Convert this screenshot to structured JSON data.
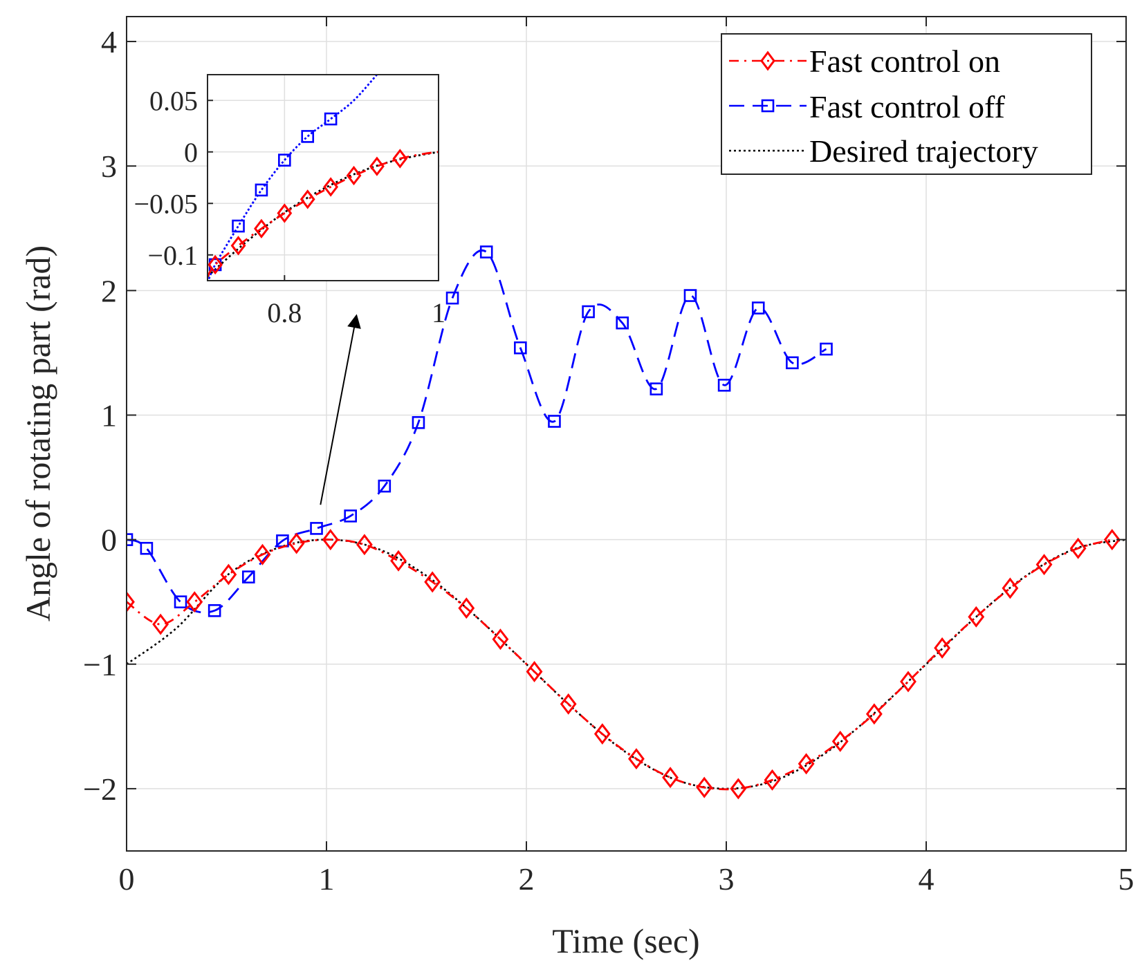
{
  "chart_data": {
    "type": "line",
    "title": "",
    "xlabel": "Time (sec)",
    "ylabel": "Angle of rotating part (rad)",
    "xlim": [
      0,
      5
    ],
    "ylim": [
      -2.5,
      4.2
    ],
    "xticks": [
      0,
      1,
      2,
      3,
      4,
      5
    ],
    "yticks": [
      -2,
      -1,
      0,
      1,
      2,
      3,
      4
    ],
    "xtick_labels": [
      "0",
      "1",
      "2",
      "3",
      "4",
      "5"
    ],
    "ytick_labels": [
      "−2",
      "−1",
      "0",
      "1",
      "2",
      "3",
      "4"
    ],
    "grid": true,
    "legend_position": "top-right",
    "series": [
      {
        "name": "Fast control on",
        "color": "#ff0000",
        "line_style": "dash-dot",
        "marker": "diamond",
        "x": [
          0,
          0.17,
          0.34,
          0.51,
          0.68,
          0.85,
          1.02,
          1.19,
          1.36,
          1.53,
          1.7,
          1.87,
          2.04,
          2.21,
          2.38,
          2.55,
          2.72,
          2.89,
          3.06,
          3.23,
          3.4,
          3.57,
          3.74,
          3.91,
          4.08,
          4.25,
          4.42,
          4.59,
          4.76,
          4.93
        ],
        "y": [
          -0.5,
          -0.68,
          -0.5,
          -0.28,
          -0.12,
          -0.03,
          -0.0,
          -0.04,
          -0.17,
          -0.34,
          -0.55,
          -0.8,
          -1.06,
          -1.32,
          -1.56,
          -1.76,
          -1.91,
          -1.99,
          -2.0,
          -1.93,
          -1.8,
          -1.62,
          -1.4,
          -1.14,
          -0.87,
          -0.62,
          -0.39,
          -0.2,
          -0.07,
          -0.0
        ]
      },
      {
        "name": "Fast control off",
        "color": "#0000ff",
        "line_style": "dashed",
        "marker": "square",
        "x": [
          0,
          0.1,
          0.27,
          0.44,
          0.61,
          0.78,
          0.95,
          1.12,
          1.29,
          1.46,
          1.63,
          1.8,
          1.97,
          2.14,
          2.31,
          2.48,
          2.65,
          2.82,
          2.99,
          3.16,
          3.33,
          3.5
        ],
        "y": [
          0.0,
          -0.07,
          -0.5,
          -0.57,
          -0.3,
          -0.01,
          0.09,
          0.19,
          0.43,
          0.94,
          1.94,
          2.31,
          1.54,
          0.95,
          1.83,
          1.74,
          1.21,
          1.96,
          1.24,
          1.86,
          1.42,
          1.53
        ]
      },
      {
        "name": "Desired trajectory",
        "color": "#000000",
        "line_style": "dotted",
        "marker": "none",
        "x": [
          0,
          0.25,
          0.5,
          0.75,
          1.0,
          1.25,
          1.5,
          1.75,
          2.0,
          2.25,
          2.5,
          2.75,
          3.0,
          3.25,
          3.5,
          3.75,
          4.0,
          4.25,
          4.5,
          4.75,
          5.0
        ],
        "y": [
          -1.0,
          -0.71,
          -0.29,
          -0.07,
          0.0,
          -0.07,
          -0.29,
          -0.62,
          -1.0,
          -1.38,
          -1.71,
          -1.93,
          -2.0,
          -1.93,
          -1.71,
          -1.38,
          -1.0,
          -0.62,
          -0.29,
          -0.07,
          0.0
        ]
      }
    ],
    "inset": {
      "xlim": [
        0.7,
        1.0
      ],
      "ylim": [
        -0.125,
        0.075
      ],
      "xticks": [
        0.8,
        1.0
      ],
      "yticks": [
        -0.1,
        -0.05,
        0,
        0.05
      ],
      "xtick_labels": [
        "0.8",
        "1"
      ],
      "ytick_labels": [
        "−0.1",
        "−0.05",
        "0",
        "0.05"
      ],
      "series": [
        {
          "name": "Fast control on",
          "x": [
            0.71,
            0.74,
            0.77,
            0.8,
            0.83,
            0.86,
            0.89,
            0.92,
            0.95
          ],
          "y": [
            -0.1095,
            -0.091,
            -0.0745,
            -0.0595,
            -0.046,
            -0.034,
            -0.023,
            -0.014,
            -0.0065
          ]
        },
        {
          "name": "Fast control off",
          "x": [
            0.71,
            0.74,
            0.77,
            0.8,
            0.83,
            0.86
          ],
          "y": [
            -0.1095,
            -0.072,
            -0.037,
            -0.008,
            0.015,
            0.032
          ]
        },
        {
          "name": "Desired trajectory",
          "x": [
            0.7,
            0.73,
            0.76,
            0.79,
            0.82,
            0.85,
            0.88,
            0.91,
            0.94,
            0.97,
            1.0
          ],
          "y": [
            -0.121,
            -0.1005,
            -0.0815,
            -0.064,
            -0.049,
            -0.036,
            -0.025,
            -0.016,
            -0.009,
            -0.004,
            0.0
          ]
        }
      ]
    },
    "annotation": {
      "type": "arrow",
      "from": [
        0.97,
        0.28
      ],
      "to": [
        1.15,
        1.8
      ]
    }
  }
}
